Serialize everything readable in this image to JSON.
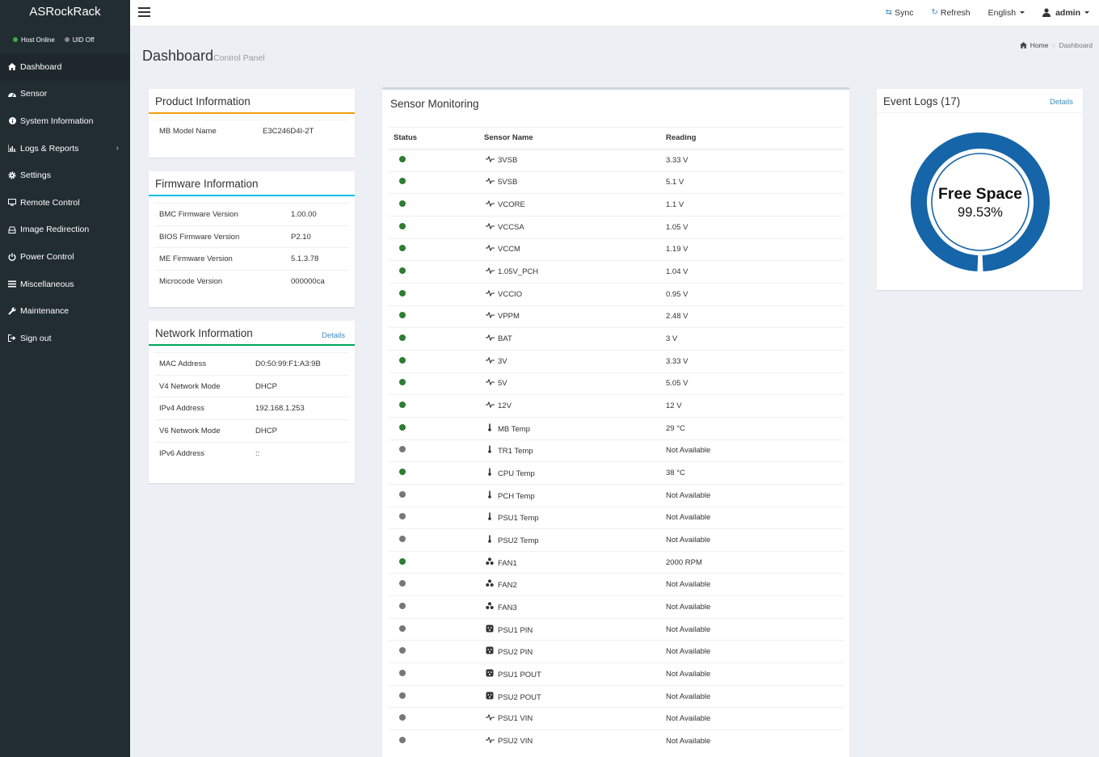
{
  "app": {
    "brand": "ASRockRack"
  },
  "status": {
    "host": "Host Online",
    "uid": "UID Off",
    "host_color": "#3cab3c",
    "uid_color": "#888888"
  },
  "sidebar": {
    "items": [
      {
        "label": "Dashboard",
        "icon": "home-icon"
      },
      {
        "label": "Sensor",
        "icon": "dashboard-gauge-icon"
      },
      {
        "label": "System Information",
        "icon": "info-circle-icon"
      },
      {
        "label": "Logs & Reports",
        "icon": "bar-chart-icon"
      },
      {
        "label": "Settings",
        "icon": "gear-icon"
      },
      {
        "label": "Remote Control",
        "icon": "desktop-icon"
      },
      {
        "label": "Image Redirection",
        "icon": "hdd-icon"
      },
      {
        "label": "Power Control",
        "icon": "power-icon"
      },
      {
        "label": "Miscellaneous",
        "icon": "list-icon"
      },
      {
        "label": "Maintenance",
        "icon": "wrench-icon"
      },
      {
        "label": "Sign out",
        "icon": "sign-out-icon"
      }
    ]
  },
  "topbar": {
    "sync": "Sync",
    "refresh": "Refresh",
    "language": "English",
    "user": "admin"
  },
  "header": {
    "title": "Dashboard",
    "subtitle": "Control Panel",
    "breadcrumb_home": "Home",
    "breadcrumb_current": "Dashboard"
  },
  "product": {
    "title": "Product Information",
    "accent": "#f39c12",
    "rows": [
      {
        "k": "MB Model Name",
        "v": "E3C246D4I-2T"
      }
    ]
  },
  "firmware": {
    "title": "Firmware Information",
    "accent": "#00c0ef",
    "rows": [
      {
        "k": "BMC Firmware Version",
        "v": "1.00.00"
      },
      {
        "k": "BIOS Firmware Version",
        "v": "P2.10"
      },
      {
        "k": "ME Firmware Version",
        "v": "5.1.3.78"
      },
      {
        "k": "Microcode Version",
        "v": "000000ca"
      }
    ]
  },
  "network": {
    "title": "Network Information",
    "details": "Details",
    "accent": "#00a65a",
    "rows": [
      {
        "k": "MAC Address",
        "v": "D0:50:99:F1:A3:9B"
      },
      {
        "k": "V4 Network Mode",
        "v": "DHCP"
      },
      {
        "k": "IPv4 Address",
        "v": "192.168.1.253"
      },
      {
        "k": "V6 Network Mode",
        "v": "DHCP"
      },
      {
        "k": "IPv6 Address",
        "v": "::"
      }
    ]
  },
  "sensors": {
    "title": "Sensor Monitoring",
    "columns": [
      "Status",
      "Sensor Name",
      "Reading"
    ],
    "ok_color": "#2e7d32",
    "na_color": "#777777",
    "rows": [
      {
        "status": "ok",
        "type": "volt",
        "name": "3VSB",
        "reading": "3.33 V"
      },
      {
        "status": "ok",
        "type": "volt",
        "name": "5VSB",
        "reading": "5.1 V"
      },
      {
        "status": "ok",
        "type": "volt",
        "name": "VCORE",
        "reading": "1.1 V"
      },
      {
        "status": "ok",
        "type": "volt",
        "name": "VCCSA",
        "reading": "1.05 V"
      },
      {
        "status": "ok",
        "type": "volt",
        "name": "VCCM",
        "reading": "1.19 V"
      },
      {
        "status": "ok",
        "type": "volt",
        "name": "1.05V_PCH",
        "reading": "1.04 V"
      },
      {
        "status": "ok",
        "type": "volt",
        "name": "VCCIO",
        "reading": "0.95 V"
      },
      {
        "status": "ok",
        "type": "volt",
        "name": "VPPM",
        "reading": "2.48 V"
      },
      {
        "status": "ok",
        "type": "volt",
        "name": "BAT",
        "reading": "3 V"
      },
      {
        "status": "ok",
        "type": "volt",
        "name": "3V",
        "reading": "3.33 V"
      },
      {
        "status": "ok",
        "type": "volt",
        "name": "5V",
        "reading": "5.05 V"
      },
      {
        "status": "ok",
        "type": "volt",
        "name": "12V",
        "reading": "12 V"
      },
      {
        "status": "ok",
        "type": "temp",
        "name": "MB Temp",
        "reading": "29 °C"
      },
      {
        "status": "na",
        "type": "temp",
        "name": "TR1 Temp",
        "reading": "Not Available"
      },
      {
        "status": "ok",
        "type": "temp",
        "name": "CPU Temp",
        "reading": "38 °C"
      },
      {
        "status": "na",
        "type": "temp",
        "name": "PCH Temp",
        "reading": "Not Available"
      },
      {
        "status": "na",
        "type": "temp",
        "name": "PSU1 Temp",
        "reading": "Not Available"
      },
      {
        "status": "na",
        "type": "temp",
        "name": "PSU2 Temp",
        "reading": "Not Available"
      },
      {
        "status": "ok",
        "type": "fan",
        "name": "FAN1",
        "reading": "2000 RPM"
      },
      {
        "status": "na",
        "type": "fan",
        "name": "FAN2",
        "reading": "Not Available"
      },
      {
        "status": "na",
        "type": "fan",
        "name": "FAN3",
        "reading": "Not Available"
      },
      {
        "status": "na",
        "type": "power",
        "name": "PSU1 PIN",
        "reading": "Not Available"
      },
      {
        "status": "na",
        "type": "power",
        "name": "PSU2 PIN",
        "reading": "Not Available"
      },
      {
        "status": "na",
        "type": "power",
        "name": "PSU1 POUT",
        "reading": "Not Available"
      },
      {
        "status": "na",
        "type": "power",
        "name": "PSU2 POUT",
        "reading": "Not Available"
      },
      {
        "status": "na",
        "type": "volt",
        "name": "PSU1 VIN",
        "reading": "Not Available"
      },
      {
        "status": "na",
        "type": "volt",
        "name": "PSU2 VIN",
        "reading": "Not Available"
      }
    ]
  },
  "events": {
    "title": "Event Logs (17)",
    "details": "Details",
    "gauge_label": "Free Space",
    "gauge_value": "99.53%",
    "free_fraction": 0.9953,
    "ring_color": "#1565a8"
  }
}
